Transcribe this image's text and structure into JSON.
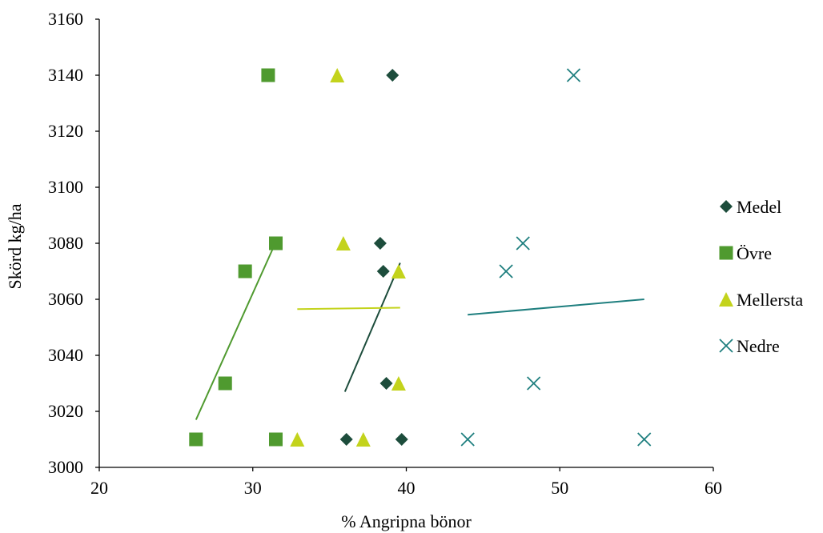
{
  "chart_data": {
    "type": "scatter",
    "title": "",
    "xlabel": "% Angripna bönor",
    "ylabel": "Skörd kg/ha",
    "xlim": [
      20,
      60
    ],
    "ylim": [
      3000,
      3160
    ],
    "xticks": [
      20,
      30,
      40,
      50,
      60
    ],
    "yticks": [
      3000,
      3020,
      3040,
      3060,
      3080,
      3100,
      3120,
      3140,
      3160
    ],
    "grid": false,
    "legend_position": "right",
    "series": [
      {
        "name": "Medel",
        "marker": "diamond",
        "color": "#1d4d3c",
        "points": [
          [
            39.1,
            3140
          ],
          [
            38.3,
            3080
          ],
          [
            38.5,
            3070
          ],
          [
            38.7,
            3030
          ],
          [
            36.1,
            3010
          ],
          [
            39.7,
            3010
          ]
        ],
        "trendline": [
          [
            36.0,
            3027
          ],
          [
            39.6,
            3073
          ]
        ]
      },
      {
        "name": "Övre",
        "marker": "square",
        "color": "#4f9a2f",
        "points": [
          [
            31.0,
            3140
          ],
          [
            31.5,
            3080
          ],
          [
            29.5,
            3070
          ],
          [
            28.2,
            3030
          ],
          [
            26.3,
            3010
          ],
          [
            31.5,
            3010
          ]
        ],
        "trendline": [
          [
            26.3,
            3017
          ],
          [
            31.3,
            3078
          ]
        ]
      },
      {
        "name": "Mellersta",
        "marker": "triangle",
        "color": "#c3d31c",
        "points": [
          [
            35.5,
            3140
          ],
          [
            35.9,
            3080
          ],
          [
            39.5,
            3070
          ],
          [
            39.5,
            3030
          ],
          [
            32.9,
            3010
          ],
          [
            37.2,
            3010
          ]
        ],
        "trendline": [
          [
            32.9,
            3056.5
          ],
          [
            39.6,
            3057
          ]
        ]
      },
      {
        "name": "Nedre",
        "marker": "x",
        "color": "#1f7f7f",
        "points": [
          [
            50.9,
            3140
          ],
          [
            47.6,
            3080
          ],
          [
            46.5,
            3070
          ],
          [
            48.3,
            3030
          ],
          [
            44.0,
            3010
          ],
          [
            55.5,
            3010
          ]
        ],
        "trendline": [
          [
            44.0,
            3054.5
          ],
          [
            55.5,
            3060
          ]
        ]
      }
    ]
  }
}
